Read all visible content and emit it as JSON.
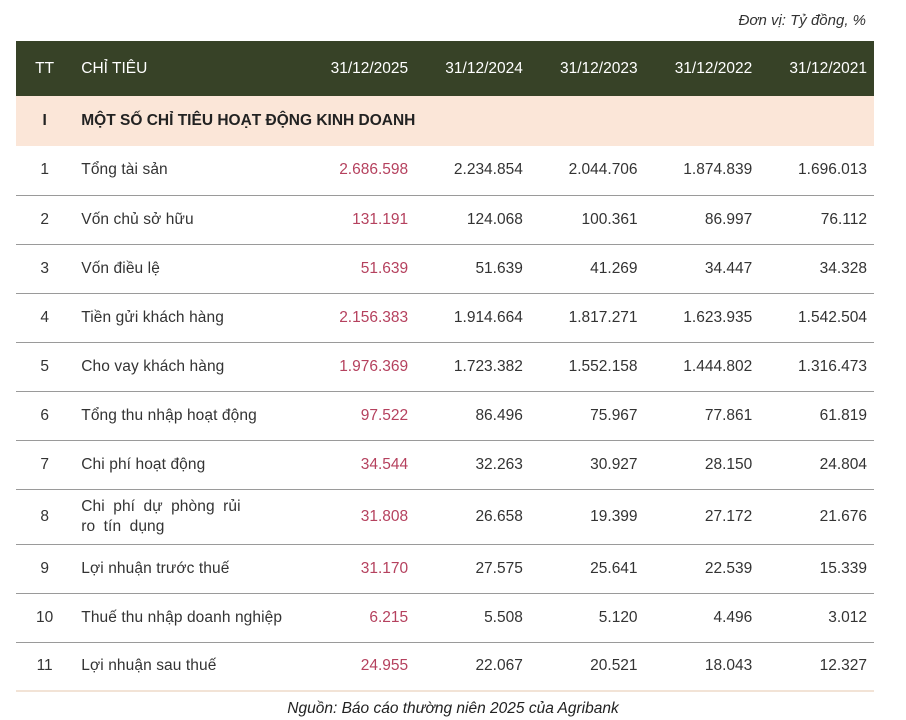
{
  "unit_note": "Đơn vị: Tỷ đồng, %",
  "header": {
    "tt": "TT",
    "name": "CHỈ TIÊU",
    "years": [
      "31/12/2025",
      "31/12/2024",
      "31/12/2023",
      "31/12/2022",
      "31/12/2021"
    ]
  },
  "section": {
    "tt": "I",
    "title": "MỘT SỐ CHỈ TIÊU HOẠT ĐỘNG KINH DOANH"
  },
  "rows": [
    {
      "tt": "1",
      "name": "Tổng tài sản",
      "values": [
        "2.686.598",
        "2.234.854",
        "2.044.706",
        "1.874.839",
        "1.696.013"
      ]
    },
    {
      "tt": "2",
      "name": "Vốn chủ sở hữu",
      "values": [
        "131.191",
        "124.068",
        "100.361",
        "86.997",
        "76.112"
      ]
    },
    {
      "tt": "3",
      "name": "Vốn điều lệ",
      "values": [
        "51.639",
        "51.639",
        "41.269",
        "34.447",
        "34.328"
      ]
    },
    {
      "tt": "4",
      "name": "Tiền gửi khách hàng",
      "values": [
        "2.156.383",
        "1.914.664",
        "1.817.271",
        "1.623.935",
        "1.542.504"
      ]
    },
    {
      "tt": "5",
      "name": "Cho vay khách hàng",
      "values": [
        "1.976.369",
        "1.723.382",
        "1.552.158",
        "1.444.802",
        "1.316.473"
      ]
    },
    {
      "tt": "6",
      "name": "Tổng thu nhập hoạt động",
      "values": [
        "97.522",
        "86.496",
        "75.967",
        "77.861",
        "61.819"
      ]
    },
    {
      "tt": "7",
      "name": "Chi phí hoạt động",
      "values": [
        "34.544",
        "32.263",
        "30.927",
        "28.150",
        "24.804"
      ]
    },
    {
      "tt": "8",
      "name": "Chi phí dự phòng rủi ro tín dụng",
      "values": [
        "31.808",
        "26.658",
        "19.399",
        "27.172",
        "21.676"
      ]
    },
    {
      "tt": "9",
      "name": "Lợi nhuận trước thuế",
      "values": [
        "31.170",
        "27.575",
        "25.641",
        "22.539",
        "15.339"
      ]
    },
    {
      "tt": "10",
      "name": "Thuế thu nhập doanh nghiệp",
      "values": [
        "6.215",
        "5.508",
        "5.120",
        "4.496",
        "3.012"
      ]
    },
    {
      "tt": "11",
      "name": "Lợi nhuận sau thuế",
      "values": [
        "24.955",
        "22.067",
        "20.521",
        "18.043",
        "12.327"
      ]
    }
  ],
  "source": "Nguồn: Báo cáo thường niên 2025 của Agribank",
  "colors": {
    "header_bg": "#374227",
    "section_bg": "#fbe6d8",
    "highlight": "#b5415e"
  }
}
